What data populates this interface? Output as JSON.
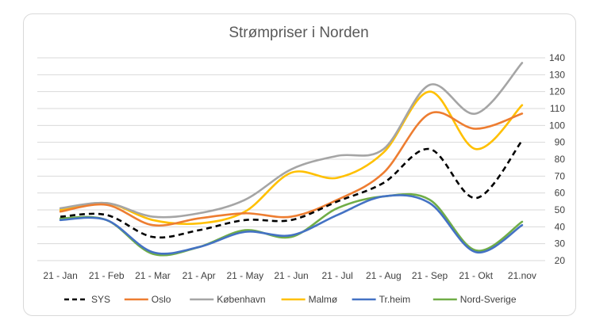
{
  "chart_data": {
    "type": "line",
    "title": "Strømpriser i Norden",
    "xlabel": "",
    "ylabel": "",
    "categories": [
      "21 - Jan",
      "21 - Feb",
      "21 - Mar",
      "21 - Apr",
      "21 - May",
      "21 - Jun",
      "21 - Jul",
      "21 - Aug",
      "21 - Sep",
      "21 - Okt",
      "21.nov"
    ],
    "ylim": [
      20,
      140
    ],
    "yticks": [
      20,
      30,
      40,
      50,
      60,
      70,
      80,
      90,
      100,
      110,
      120,
      130,
      140
    ],
    "y_axis_side": "right",
    "grid": true,
    "legend_position": "bottom",
    "series": [
      {
        "name": "SYS",
        "color": "#000000",
        "dashed": true,
        "values": [
          46,
          47,
          34,
          38,
          44,
          44,
          55,
          66,
          86,
          57,
          91
        ]
      },
      {
        "name": "Oslo",
        "color": "#ED7D31",
        "dashed": false,
        "values": [
          49,
          53,
          41,
          45,
          48,
          46,
          56,
          72,
          107,
          98,
          107
        ]
      },
      {
        "name": "København",
        "color": "#A5A5A5",
        "dashed": false,
        "values": [
          51,
          54,
          46,
          48,
          56,
          74,
          82,
          86,
          124,
          107,
          137
        ]
      },
      {
        "name": "Malmø",
        "color": "#FFC000",
        "dashed": false,
        "values": [
          50,
          54,
          44,
          42,
          49,
          72,
          69,
          84,
          120,
          86,
          112
        ]
      },
      {
        "name": "Tr.heim",
        "color": "#4472C4",
        "dashed": false,
        "values": [
          44,
          44,
          25,
          28,
          37,
          35,
          47,
          58,
          54,
          25,
          41
        ]
      },
      {
        "name": "Nord-Sverige",
        "color": "#70AD47",
        "dashed": false,
        "values": [
          45,
          44,
          24,
          28,
          38,
          34,
          51,
          58,
          56,
          26,
          43
        ]
      }
    ]
  }
}
